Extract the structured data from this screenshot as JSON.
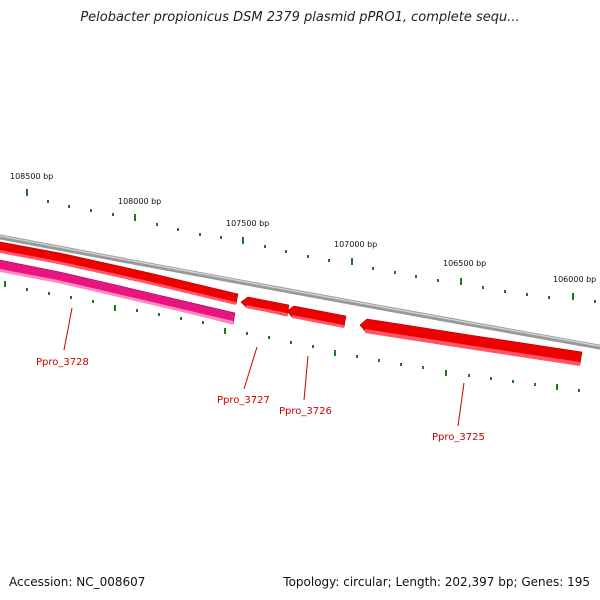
{
  "title": "Pelobacter propionicus DSM 2379 plasmid pPRO1, complete sequ...",
  "footer": {
    "accession": "Accession: NC_008607",
    "stats": "Topology: circular; Length: 202,397 bp; Genes: 195"
  },
  "position_labels": [
    "108500 bp",
    "108000 bp",
    "107500 bp",
    "107000 bp",
    "106500 bp",
    "106000 bp"
  ],
  "genes": [
    {
      "name": "Ppro_3728",
      "strand": "forward"
    },
    {
      "name": "Ppro_3727",
      "strand": "reverse"
    },
    {
      "name": "Ppro_3726",
      "strand": "reverse"
    },
    {
      "name": "Ppro_3725",
      "strand": "reverse"
    }
  ],
  "colors": {
    "backbone": "#8a8a8a",
    "gene": "#ee0000",
    "gene_highlight": "#ff5577",
    "gene_label": "#cc0000",
    "tick": "#1a7a1a"
  }
}
